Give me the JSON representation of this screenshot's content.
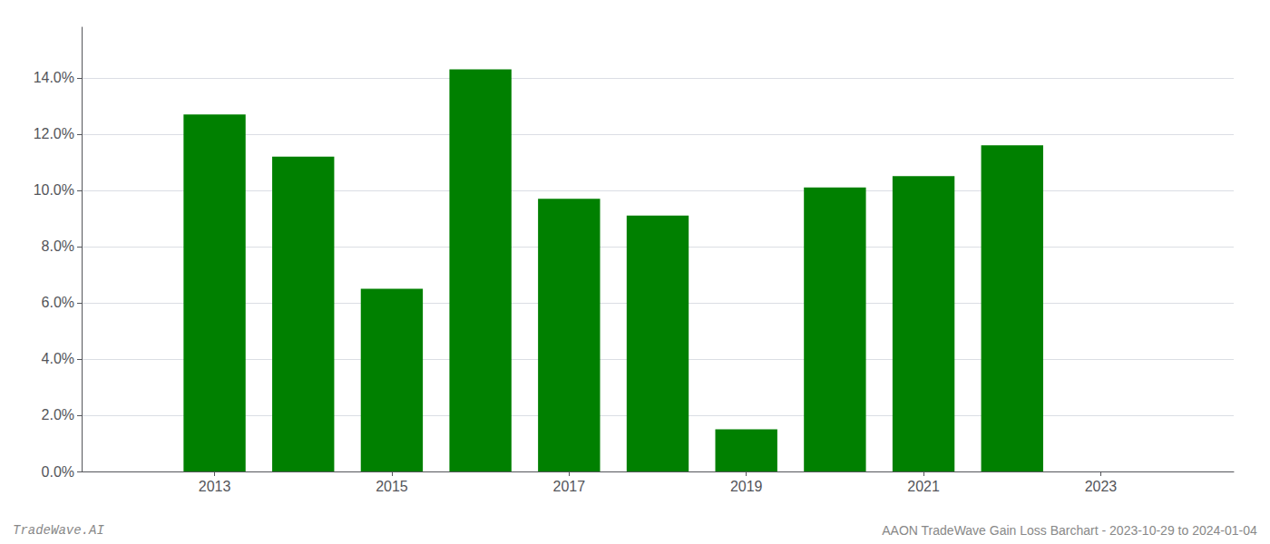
{
  "chart_data": {
    "type": "bar",
    "x": [
      2013,
      2014,
      2015,
      2016,
      2017,
      2018,
      2019,
      2020,
      2021,
      2022
    ],
    "values": [
      0.127,
      0.112,
      0.065,
      0.143,
      0.097,
      0.091,
      0.015,
      0.101,
      0.105,
      0.116
    ],
    "color": "#008000",
    "xlim": [
      2011.5,
      2024.5
    ],
    "xticks": [
      2013,
      2015,
      2017,
      2019,
      2021,
      2023
    ],
    "ylim": [
      0,
      0.158
    ],
    "yticks": [
      {
        "value": 0.0,
        "label": "0.0%"
      },
      {
        "value": 0.02,
        "label": "2.0%"
      },
      {
        "value": 0.04,
        "label": "4.0%"
      },
      {
        "value": 0.06,
        "label": "6.0%"
      },
      {
        "value": 0.08,
        "label": "8.0%"
      },
      {
        "value": 0.1,
        "label": "10.0%"
      },
      {
        "value": 0.12,
        "label": "12.0%"
      },
      {
        "value": 0.14,
        "label": "14.0%"
      }
    ],
    "grid": true,
    "annotations": [
      "TradeWave.AI",
      "AAON TradeWave Gain Loss Barchart - 2023-10-29 to 2024-01-04"
    ]
  }
}
